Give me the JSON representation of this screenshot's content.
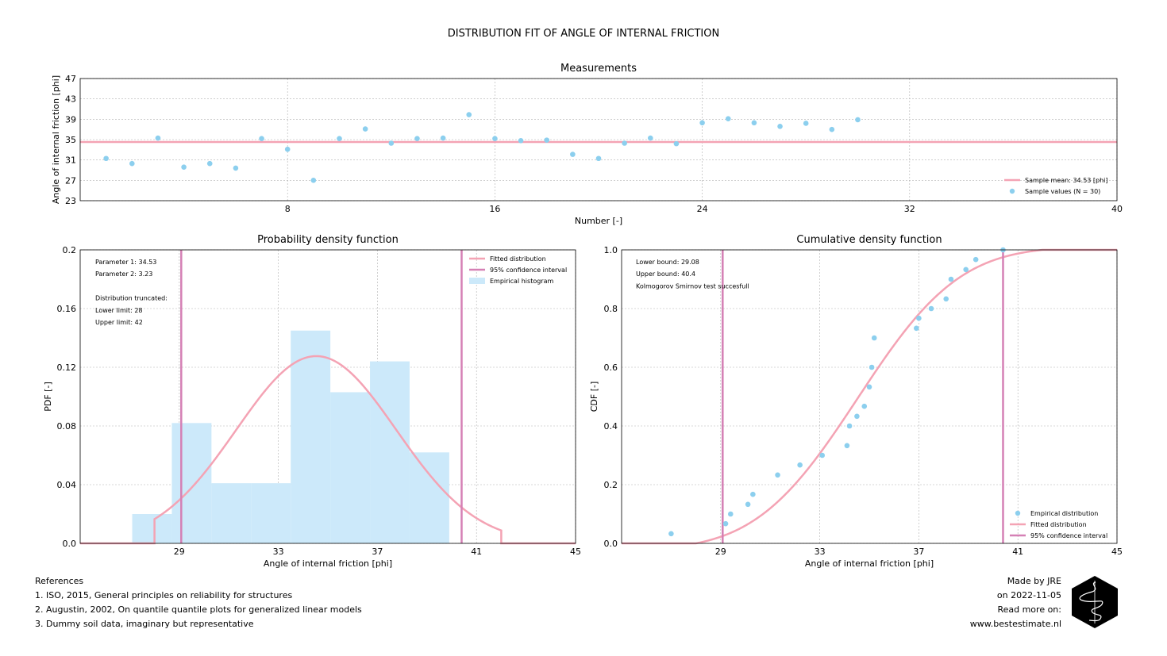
{
  "title": "DISTRIBUTION FIT OF ANGLE OF INTERNAL FRICTION",
  "colors": {
    "fit": "#f4a3b4",
    "ci": "#d580b5",
    "sample": "#8ccfee",
    "hist": "#cce9fa",
    "grid": "#b0b0b0"
  },
  "chart_data": [
    {
      "id": "measurements",
      "type": "scatter",
      "title": "Measurements",
      "xlabel": "Number [-]",
      "ylabel": "Angle of internal friction [phi]",
      "xlim": [
        0,
        40
      ],
      "ylim": [
        23,
        47
      ],
      "xticks": [
        8,
        16,
        24,
        32,
        40
      ],
      "yticks": [
        23,
        27,
        31,
        35,
        39,
        43,
        47
      ],
      "x": [
        1,
        2,
        3,
        4,
        5,
        6,
        7,
        8,
        9,
        10,
        11,
        12,
        13,
        14,
        15,
        16,
        17,
        18,
        19,
        20,
        21,
        22,
        23,
        24,
        25,
        26,
        27,
        28,
        29,
        30
      ],
      "y": [
        31.3,
        30.3,
        35.3,
        29.6,
        30.3,
        29.4,
        35.2,
        33.1,
        27.0,
        35.2,
        37.1,
        34.3,
        35.2,
        35.3,
        39.9,
        35.2,
        34.8,
        34.9,
        32.1,
        31.3,
        34.3,
        35.3,
        34.2,
        38.3,
        39.1,
        38.3,
        37.6,
        38.2,
        37.0,
        38.9
      ],
      "mean": 34.53,
      "grid": true,
      "legend_position": "lower right",
      "legend": [
        "Sample mean: 34.53 [phi]",
        "Sample values (N = 30)"
      ]
    },
    {
      "id": "pdf",
      "type": "bar",
      "title": "Probability density function",
      "xlabel": "Angle of internal friction [phi]",
      "ylabel": "PDF [-]",
      "xlim": [
        25,
        45
      ],
      "ylim": [
        0,
        0.2
      ],
      "xticks": [
        29,
        33,
        37,
        41,
        45
      ],
      "yticks": [
        "0.0",
        "0.04",
        "0.08",
        "0.12",
        "0.16",
        "0.2"
      ],
      "hist_bins": [
        [
          27.1,
          28.7
        ],
        [
          28.7,
          30.3
        ],
        [
          30.3,
          31.9
        ],
        [
          31.9,
          33.5
        ],
        [
          33.5,
          35.1
        ],
        [
          35.1,
          36.7
        ],
        [
          36.7,
          38.3
        ],
        [
          38.3,
          39.9
        ]
      ],
      "hist_values": [
        0.02,
        0.082,
        0.041,
        0.041,
        0.145,
        0.103,
        0.124,
        0.062
      ],
      "fit": {
        "mean": 34.53,
        "std": 3.23,
        "lower": 28,
        "upper": 42
      },
      "ci": [
        29.08,
        40.4
      ],
      "annotation": [
        "Parameter 1: 34.53",
        "Parameter 2: 3.23",
        "",
        "Distribution truncated:",
        "Lower limit: 28",
        "Upper limit: 42"
      ],
      "grid": true,
      "legend_position": "upper right",
      "legend": [
        "Fitted distribution",
        "95% confidence interval",
        "Empirical histogram"
      ]
    },
    {
      "id": "cdf",
      "type": "scatter",
      "title": "Cumulative density function",
      "xlabel": "Angle of internal friction [phi]",
      "ylabel": "CDF [-]",
      "xlim": [
        25,
        45
      ],
      "ylim": [
        0,
        1
      ],
      "xticks": [
        29,
        33,
        37,
        41,
        45
      ],
      "yticks": [
        "0.0",
        "0.2",
        "0.4",
        "0.6",
        "0.8",
        "1.0"
      ],
      "empirical_x": [
        27.0,
        29.2,
        29.4,
        30.1,
        30.3,
        31.3,
        32.2,
        33.1,
        34.1,
        34.2,
        34.5,
        34.8,
        35.0,
        35.1,
        35.2,
        36.9,
        37.0,
        37.5,
        38.1,
        38.3,
        38.9,
        39.3
      ],
      "empirical_y": [
        0.033,
        0.067,
        0.1,
        0.133,
        0.167,
        0.233,
        0.267,
        0.3,
        0.333,
        0.4,
        0.433,
        0.467,
        0.533,
        0.6,
        0.7,
        0.733,
        0.767,
        0.8,
        0.833,
        0.9,
        0.933,
        0.967
      ],
      "extra_points": [
        [
          40.4,
          1.0
        ]
      ],
      "fit": {
        "mean": 34.53,
        "std": 3.23,
        "lower": 28,
        "upper": 42
      },
      "ci": [
        29.08,
        40.4
      ],
      "annotation": [
        "Lower bound: 29.08",
        "Upper bound: 40.4",
        "Kolmogorov Smirnov test succesfull"
      ],
      "grid": true,
      "legend_position": "lower right",
      "legend": [
        "Empirical distribution",
        "Fitted distribution",
        "95% confidence interval"
      ]
    }
  ],
  "references": {
    "heading": "References",
    "items": [
      "1. ISO, 2015, General principles on reliability for structures",
      "2. Augustin, 2002, On quantile quantile plots for generalized linear models",
      "3. Dummy soil data, imaginary but representative"
    ]
  },
  "credits": {
    "line1": "Made by JRE",
    "line2": "on 2022-11-05",
    "line3": "Read more on:",
    "line4": "www.bestestimate.nl"
  },
  "logo_icon": "hexagon-logo-icon"
}
